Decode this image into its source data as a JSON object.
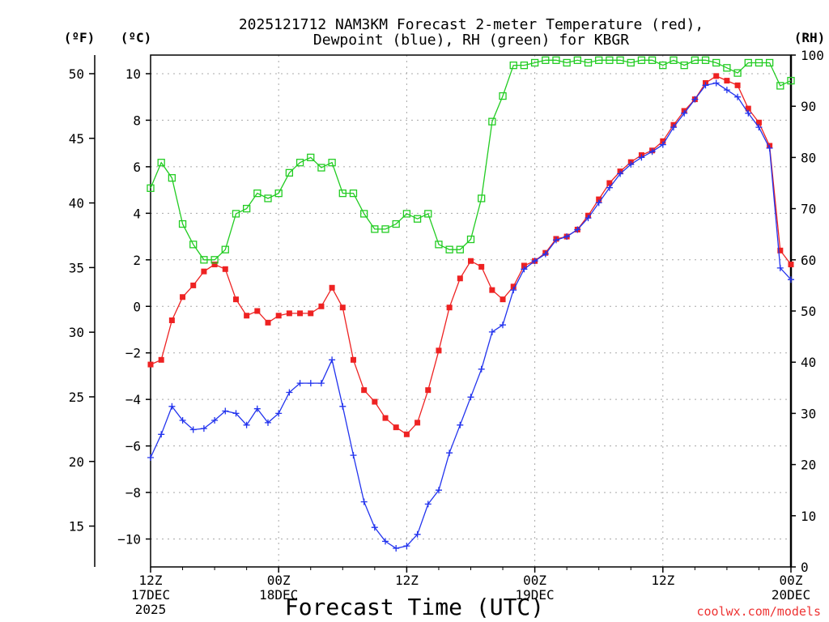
{
  "chart_data": {
    "type": "line",
    "title_line1": "2025121712 NAM3KM Forecast 2-meter Temperature (red),",
    "title_line2": "Dewpoint (blue), RH (green) for KBGR",
    "xlabel": "Forecast Time (UTC)",
    "ylabel_f": "(ºF)",
    "ylabel_c": "(ºC)",
    "ylabel_rh": "(RH)",
    "credit": "coolwx.com/models",
    "hours": [
      0,
      1,
      2,
      3,
      4,
      5,
      6,
      7,
      8,
      9,
      10,
      11,
      12,
      13,
      14,
      15,
      16,
      17,
      18,
      19,
      20,
      21,
      22,
      23,
      24,
      25,
      26,
      27,
      28,
      29,
      30,
      31,
      32,
      33,
      34,
      35,
      36,
      37,
      38,
      39,
      40,
      41,
      42,
      43,
      44,
      45,
      46,
      47,
      48,
      49,
      50,
      51,
      52,
      53,
      54,
      55,
      56,
      57,
      58,
      59,
      60
    ],
    "xlim": [
      0,
      60
    ],
    "c_lim": [
      -11.2,
      10.8
    ],
    "f_lim": [
      11.84,
      51.44
    ],
    "rh_lim": [
      0,
      100
    ],
    "x_ticks": [
      {
        "hour": 0,
        "lines": [
          "12Z",
          "17DEC",
          "2025"
        ]
      },
      {
        "hour": 12,
        "lines": [
          "00Z",
          "18DEC"
        ]
      },
      {
        "hour": 24,
        "lines": [
          "12Z"
        ]
      },
      {
        "hour": 36,
        "lines": [
          "00Z",
          "19DEC"
        ]
      },
      {
        "hour": 48,
        "lines": [
          "12Z"
        ]
      },
      {
        "hour": 60,
        "lines": [
          "00Z",
          "20DEC"
        ]
      }
    ],
    "c_ticks": [
      -10,
      -8,
      -6,
      -4,
      -2,
      0,
      2,
      4,
      6,
      8,
      10
    ],
    "f_ticks": [
      15,
      20,
      25,
      30,
      35,
      40,
      45,
      50
    ],
    "rh_ticks": [
      0,
      10,
      20,
      30,
      40,
      50,
      60,
      70,
      80,
      90,
      100
    ],
    "series": [
      {
        "name": "Temperature",
        "unit": "C",
        "color": "#ee2222",
        "marker": "square-filled",
        "values": [
          -2.5,
          -2.3,
          -0.6,
          0.4,
          0.9,
          1.5,
          1.8,
          1.6,
          0.3,
          -0.4,
          -0.2,
          -0.7,
          -0.4,
          -0.3,
          -0.3,
          -0.3,
          0.0,
          0.8,
          -0.05,
          -2.3,
          -3.6,
          -4.1,
          -4.8,
          -5.2,
          -5.5,
          -5.0,
          -3.6,
          -1.9,
          -0.05,
          1.2,
          1.95,
          1.7,
          0.7,
          0.3,
          0.85,
          1.75,
          1.95,
          2.3,
          2.9,
          3.0,
          3.3,
          3.9,
          4.6,
          5.3,
          5.8,
          6.2,
          6.5,
          6.7,
          7.1,
          7.8,
          8.4,
          8.9,
          9.6,
          9.9,
          9.7,
          9.5,
          8.5,
          7.9,
          6.9,
          2.4,
          1.8
        ]
      },
      {
        "name": "Dewpoint",
        "unit": "C",
        "color": "#2233ee",
        "marker": "plus",
        "values": [
          -6.5,
          -5.5,
          -4.3,
          -4.9,
          -5.3,
          -5.25,
          -4.9,
          -4.5,
          -4.6,
          -5.1,
          -4.4,
          -5.0,
          -4.6,
          -3.7,
          -3.3,
          -3.3,
          -3.3,
          -2.3,
          -4.3,
          -6.4,
          -8.4,
          -9.5,
          -10.1,
          -10.4,
          -10.3,
          -9.8,
          -8.5,
          -7.9,
          -6.3,
          -5.1,
          -3.9,
          -2.7,
          -1.1,
          -0.8,
          0.7,
          1.6,
          1.95,
          2.25,
          2.85,
          3.0,
          3.3,
          3.8,
          4.45,
          5.1,
          5.7,
          6.1,
          6.4,
          6.65,
          6.95,
          7.7,
          8.3,
          8.9,
          9.5,
          9.6,
          9.3,
          9.0,
          8.3,
          7.7,
          6.8,
          1.65,
          1.15
        ]
      },
      {
        "name": "RH",
        "unit": "%",
        "color": "#22cc22",
        "marker": "square-open",
        "values": [
          74,
          79,
          76,
          67,
          63,
          60,
          60,
          62,
          69,
          70,
          73,
          72,
          73,
          77,
          79,
          80,
          78,
          79,
          73,
          73,
          69,
          66,
          66,
          67,
          69,
          68,
          69,
          63,
          62,
          62,
          64,
          72,
          87,
          92,
          98,
          98,
          98.5,
          99,
          99,
          98.5,
          99,
          98.5,
          99,
          99,
          99,
          98.5,
          99,
          99,
          98,
          99,
          98,
          99,
          99,
          98.5,
          97.5,
          96.5,
          98.5,
          98.5,
          98.5,
          94,
          95
        ]
      }
    ]
  }
}
